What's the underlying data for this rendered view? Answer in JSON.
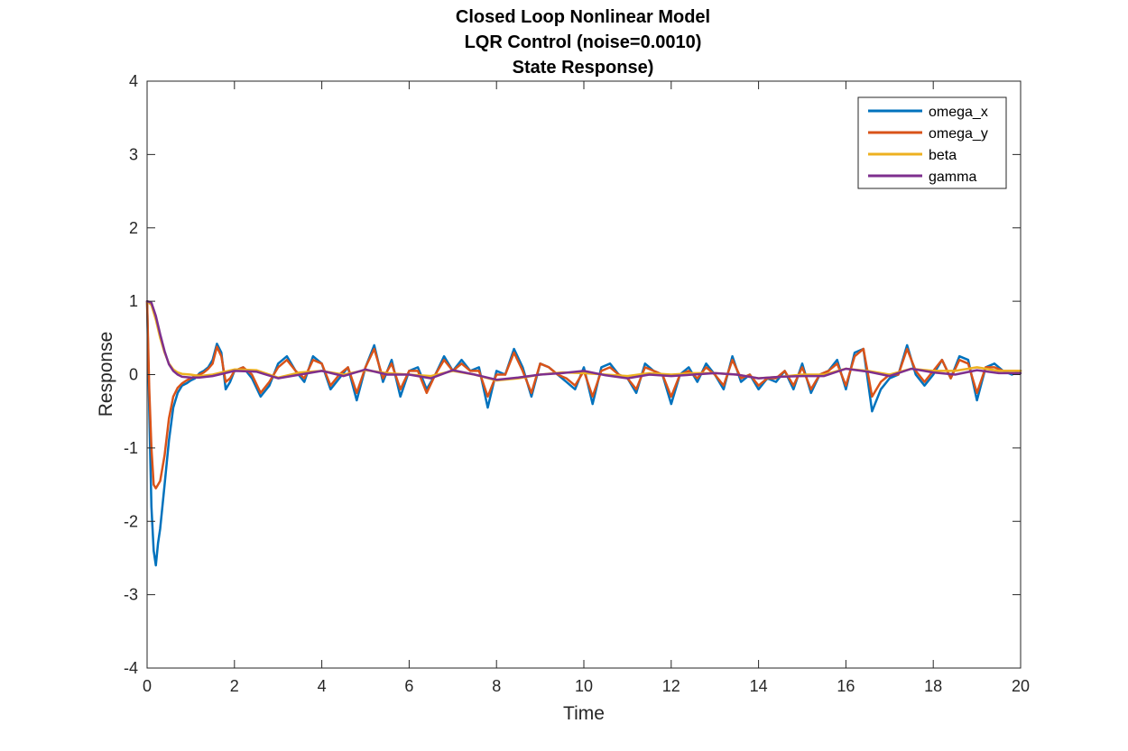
{
  "chart_data": {
    "type": "line",
    "title_lines": [
      "Closed Loop Nonlinear Model",
      "LQR Control (noise=0.0010)",
      "State Response)"
    ],
    "xlabel": "Time",
    "ylabel": "Response",
    "xlim": [
      0,
      20
    ],
    "ylim": [
      -4,
      4
    ],
    "xticks": [
      0,
      2,
      4,
      6,
      8,
      10,
      12,
      14,
      16,
      18,
      20
    ],
    "yticks": [
      -4,
      -3,
      -2,
      -1,
      0,
      1,
      2,
      3,
      4
    ],
    "grid": false,
    "legend_position": "top-right",
    "series": [
      {
        "name": "omega_x",
        "color": "#0072BD",
        "x": [
          0,
          0.05,
          0.1,
          0.15,
          0.2,
          0.25,
          0.3,
          0.4,
          0.5,
          0.6,
          0.7,
          0.8,
          0.9,
          1.0,
          1.1,
          1.2,
          1.3,
          1.4,
          1.5,
          1.6,
          1.7,
          1.8,
          1.9,
          2.0,
          2.2,
          2.4,
          2.6,
          2.8,
          3.0,
          3.2,
          3.4,
          3.6,
          3.8,
          4.0,
          4.2,
          4.4,
          4.6,
          4.8,
          5.0,
          5.2,
          5.4,
          5.6,
          5.8,
          6.0,
          6.2,
          6.4,
          6.6,
          6.8,
          7.0,
          7.2,
          7.4,
          7.6,
          7.8,
          8.0,
          8.2,
          8.4,
          8.6,
          8.8,
          9.0,
          9.2,
          9.4,
          9.6,
          9.8,
          10.0,
          10.2,
          10.4,
          10.6,
          10.8,
          11.0,
          11.2,
          11.4,
          11.6,
          11.8,
          12.0,
          12.2,
          12.4,
          12.6,
          12.8,
          13.0,
          13.2,
          13.4,
          13.6,
          13.8,
          14.0,
          14.2,
          14.4,
          14.6,
          14.8,
          15.0,
          15.2,
          15.4,
          15.6,
          15.8,
          16.0,
          16.2,
          16.4,
          16.6,
          16.8,
          17.0,
          17.2,
          17.4,
          17.6,
          17.8,
          18.0,
          18.2,
          18.4,
          18.6,
          18.8,
          19.0,
          19.2,
          19.4,
          19.6,
          19.8,
          20.0
        ],
        "y": [
          1.0,
          -0.5,
          -1.8,
          -2.4,
          -2.6,
          -2.3,
          -2.1,
          -1.5,
          -0.9,
          -0.45,
          -0.25,
          -0.15,
          -0.12,
          -0.08,
          -0.05,
          0.02,
          0.05,
          0.1,
          0.2,
          0.42,
          0.3,
          -0.2,
          -0.1,
          0.05,
          0.1,
          -0.05,
          -0.3,
          -0.15,
          0.15,
          0.25,
          0.05,
          -0.1,
          0.25,
          0.15,
          -0.2,
          -0.05,
          0.1,
          -0.35,
          0.1,
          0.4,
          -0.1,
          0.2,
          -0.3,
          0.05,
          0.1,
          -0.2,
          0.0,
          0.25,
          0.05,
          0.2,
          0.05,
          0.1,
          -0.45,
          0.05,
          0.0,
          0.35,
          0.1,
          -0.3,
          0.15,
          0.1,
          0.0,
          -0.1,
          -0.2,
          0.1,
          -0.4,
          0.1,
          0.15,
          0.0,
          -0.05,
          -0.25,
          0.15,
          0.05,
          0.0,
          -0.4,
          0.0,
          0.1,
          -0.1,
          0.15,
          0.0,
          -0.2,
          0.25,
          -0.1,
          0.0,
          -0.2,
          -0.05,
          -0.1,
          0.05,
          -0.2,
          0.15,
          -0.25,
          0.0,
          0.05,
          0.2,
          -0.2,
          0.3,
          0.35,
          -0.5,
          -0.2,
          -0.05,
          0.0,
          0.4,
          0.0,
          -0.15,
          0.0,
          0.2,
          -0.05,
          0.25,
          0.2,
          -0.35,
          0.1,
          0.15,
          0.05,
          0.0,
          0.05
        ]
      },
      {
        "name": "omega_y",
        "color": "#D95319",
        "x": [
          0,
          0.05,
          0.1,
          0.15,
          0.2,
          0.25,
          0.3,
          0.4,
          0.5,
          0.6,
          0.7,
          0.8,
          0.9,
          1.0,
          1.1,
          1.2,
          1.3,
          1.4,
          1.5,
          1.6,
          1.7,
          1.8,
          1.9,
          2.0,
          2.2,
          2.4,
          2.6,
          2.8,
          3.0,
          3.2,
          3.4,
          3.6,
          3.8,
          4.0,
          4.2,
          4.4,
          4.6,
          4.8,
          5.0,
          5.2,
          5.4,
          5.6,
          5.8,
          6.0,
          6.2,
          6.4,
          6.6,
          6.8,
          7.0,
          7.2,
          7.4,
          7.6,
          7.8,
          8.0,
          8.2,
          8.4,
          8.6,
          8.8,
          9.0,
          9.2,
          9.4,
          9.6,
          9.8,
          10.0,
          10.2,
          10.4,
          10.6,
          10.8,
          11.0,
          11.2,
          11.4,
          11.6,
          11.8,
          12.0,
          12.2,
          12.4,
          12.6,
          12.8,
          13.0,
          13.2,
          13.4,
          13.6,
          13.8,
          14.0,
          14.2,
          14.4,
          14.6,
          14.8,
          15.0,
          15.2,
          15.4,
          15.6,
          15.8,
          16.0,
          16.2,
          16.4,
          16.6,
          16.8,
          17.0,
          17.2,
          17.4,
          17.6,
          17.8,
          18.0,
          18.2,
          18.4,
          18.6,
          18.8,
          19.0,
          19.2,
          19.4,
          19.6,
          19.8,
          20.0
        ],
        "y": [
          1.0,
          -0.2,
          -1.0,
          -1.5,
          -1.55,
          -1.5,
          -1.45,
          -1.1,
          -0.6,
          -0.3,
          -0.18,
          -0.12,
          -0.08,
          -0.05,
          -0.02,
          0.0,
          0.03,
          0.08,
          0.15,
          0.38,
          0.25,
          -0.1,
          -0.05,
          0.05,
          0.1,
          0.0,
          -0.25,
          -0.1,
          0.1,
          0.2,
          0.05,
          -0.05,
          0.2,
          0.15,
          -0.15,
          0.0,
          0.1,
          -0.25,
          0.1,
          0.35,
          -0.05,
          0.15,
          -0.2,
          0.05,
          0.05,
          -0.25,
          0.0,
          0.2,
          0.05,
          0.15,
          0.05,
          0.05,
          -0.3,
          0.0,
          0.0,
          0.3,
          0.05,
          -0.25,
          0.15,
          0.1,
          0.0,
          -0.05,
          -0.15,
          0.05,
          -0.3,
          0.05,
          0.1,
          0.0,
          -0.05,
          -0.2,
          0.1,
          0.05,
          0.0,
          -0.3,
          0.0,
          0.05,
          -0.05,
          0.1,
          0.0,
          -0.15,
          0.2,
          -0.05,
          0.0,
          -0.15,
          -0.05,
          -0.05,
          0.05,
          -0.15,
          0.1,
          -0.2,
          0.0,
          0.05,
          0.15,
          -0.15,
          0.25,
          0.35,
          -0.3,
          -0.1,
          0.0,
          0.0,
          0.35,
          0.05,
          -0.1,
          0.05,
          0.2,
          -0.05,
          0.2,
          0.15,
          -0.25,
          0.1,
          0.1,
          0.05,
          0.05,
          0.05
        ]
      },
      {
        "name": "beta",
        "color": "#EDB120",
        "x": [
          0,
          0.1,
          0.2,
          0.3,
          0.4,
          0.5,
          0.6,
          0.7,
          0.8,
          1.0,
          1.2,
          1.5,
          2.0,
          2.5,
          3.0,
          3.5,
          4.0,
          4.5,
          5.0,
          5.5,
          6.0,
          6.5,
          7.0,
          7.5,
          8.0,
          8.5,
          9.0,
          9.5,
          10.0,
          10.5,
          11.0,
          11.5,
          12.0,
          12.5,
          13.0,
          13.5,
          14.0,
          14.5,
          15.0,
          15.5,
          16.0,
          16.5,
          17.0,
          17.5,
          18.0,
          18.5,
          19.0,
          19.5,
          20.0
        ],
        "y": [
          1.0,
          0.95,
          0.75,
          0.5,
          0.3,
          0.15,
          0.07,
          0.03,
          0.01,
          0.0,
          -0.02,
          0.0,
          0.07,
          0.06,
          -0.04,
          0.03,
          0.05,
          0.0,
          0.06,
          0.02,
          0.0,
          -0.02,
          0.05,
          0.0,
          -0.08,
          -0.05,
          0.0,
          0.03,
          0.02,
          0.0,
          -0.02,
          0.02,
          0.0,
          0.02,
          0.02,
          0.0,
          -0.05,
          -0.03,
          0.0,
          0.0,
          0.08,
          0.05,
          0.0,
          0.08,
          0.05,
          0.05,
          0.1,
          0.05,
          0.05
        ]
      },
      {
        "name": "gamma",
        "color": "#7E2F8E",
        "x": [
          0,
          0.1,
          0.2,
          0.3,
          0.4,
          0.5,
          0.6,
          0.7,
          0.8,
          1.0,
          1.2,
          1.5,
          2.0,
          2.5,
          3.0,
          3.5,
          4.0,
          4.5,
          5.0,
          5.5,
          6.0,
          6.5,
          7.0,
          7.5,
          8.0,
          8.5,
          9.0,
          9.5,
          10.0,
          10.5,
          11.0,
          11.5,
          12.0,
          12.5,
          13.0,
          13.5,
          14.0,
          14.5,
          15.0,
          15.5,
          16.0,
          16.5,
          17.0,
          17.5,
          18.0,
          18.5,
          19.0,
          19.5,
          20.0
        ],
        "y": [
          1.0,
          0.98,
          0.8,
          0.55,
          0.32,
          0.14,
          0.05,
          0.0,
          -0.03,
          -0.04,
          -0.04,
          -0.02,
          0.05,
          0.04,
          -0.05,
          0.0,
          0.05,
          -0.02,
          0.07,
          0.0,
          0.0,
          -0.05,
          0.06,
          0.0,
          -0.07,
          -0.04,
          0.0,
          0.02,
          0.05,
          -0.01,
          -0.05,
          0.0,
          -0.02,
          0.0,
          0.02,
          0.0,
          -0.05,
          -0.03,
          -0.02,
          -0.02,
          0.08,
          0.04,
          -0.02,
          0.08,
          0.03,
          0.0,
          0.06,
          0.02,
          0.02
        ]
      }
    ]
  }
}
